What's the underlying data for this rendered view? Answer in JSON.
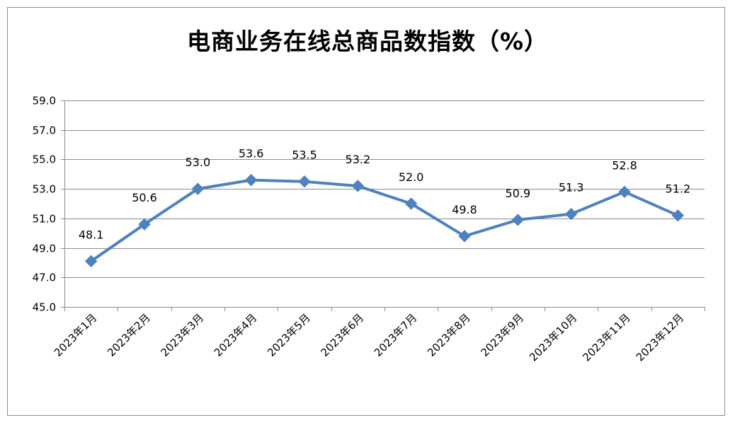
{
  "chart_data": {
    "type": "line",
    "title": "电商业务在线总商品数指数（%）",
    "xlabel": "",
    "ylabel": "",
    "categories": [
      "2023年1月",
      "2023年2月",
      "2023年3月",
      "2023年4月",
      "2023年5月",
      "2023年6月",
      "2023年7月",
      "2023年8月",
      "2023年9月",
      "2023年10月",
      "2023年11月",
      "2023年12月"
    ],
    "series": [
      {
        "values": [
          48.1,
          50.6,
          53.0,
          53.6,
          53.5,
          53.2,
          52.0,
          49.8,
          50.9,
          51.3,
          52.8,
          51.2
        ],
        "labels": [
          "48.1",
          "50.6",
          "53.0",
          "53.6",
          "53.5",
          "53.2",
          "52.0",
          "49.8",
          "50.9",
          "51.3",
          "52.8",
          "51.2"
        ],
        "color": "#4f81bd",
        "marker": "diamond"
      }
    ],
    "ylim": [
      45.0,
      59.0
    ],
    "yticks": [
      "45.0",
      "47.0",
      "49.0",
      "51.0",
      "53.0",
      "55.0",
      "57.0",
      "59.0"
    ],
    "grid": true,
    "legend": "none"
  }
}
